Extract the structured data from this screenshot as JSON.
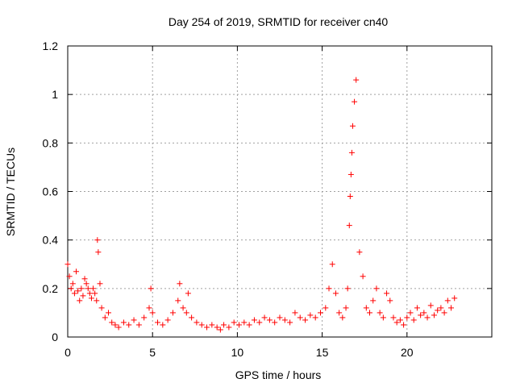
{
  "chart_data": {
    "type": "scatter",
    "title": "Day 254 of 2019, SRMTID for receiver cn40",
    "xlabel": "GPS time / hours",
    "ylabel": "SRMTID / TECUs",
    "xlim": [
      0,
      25
    ],
    "ylim": [
      0,
      1.2
    ],
    "xticks": [
      0,
      5,
      10,
      15,
      20
    ],
    "yticks": [
      0,
      0.2,
      0.4,
      0.6,
      0.8,
      1,
      1.2
    ],
    "xtick_labels": [
      "0",
      "5",
      "10",
      "15",
      "20"
    ],
    "ytick_labels": [
      "0",
      "0.2",
      "0.4",
      "0.6",
      "0.8",
      "1",
      "1.2"
    ],
    "grid": true,
    "marker": "+",
    "color": "#ff0000",
    "series": [
      {
        "name": "SRMTID",
        "x": [
          0.0,
          0.1,
          0.2,
          0.3,
          0.4,
          0.5,
          0.6,
          0.7,
          0.8,
          0.9,
          1.0,
          1.1,
          1.2,
          1.3,
          1.4,
          1.5,
          1.6,
          1.7,
          1.75,
          1.8,
          1.9,
          2.0,
          2.2,
          2.4,
          2.6,
          2.8,
          3.0,
          3.3,
          3.6,
          3.9,
          4.2,
          4.5,
          4.8,
          4.9,
          5.0,
          5.3,
          5.6,
          5.9,
          6.2,
          6.5,
          6.6,
          6.8,
          7.0,
          7.1,
          7.3,
          7.6,
          7.9,
          8.2,
          8.5,
          8.8,
          9.0,
          9.2,
          9.5,
          9.8,
          10.1,
          10.4,
          10.7,
          11.0,
          11.3,
          11.6,
          11.9,
          12.2,
          12.5,
          12.8,
          13.1,
          13.4,
          13.7,
          14.0,
          14.3,
          14.6,
          14.9,
          15.2,
          15.4,
          15.6,
          15.8,
          16.0,
          16.2,
          16.4,
          16.5,
          16.6,
          16.65,
          16.7,
          16.75,
          16.8,
          16.9,
          17.0,
          17.2,
          17.4,
          17.6,
          17.8,
          18.0,
          18.2,
          18.4,
          18.6,
          18.8,
          19.0,
          19.2,
          19.4,
          19.6,
          19.8,
          20.0,
          20.2,
          20.4,
          20.6,
          20.8,
          21.0,
          21.2,
          21.4,
          21.6,
          21.8,
          22.0,
          22.2,
          22.4,
          22.6,
          22.8
        ],
        "y": [
          0.3,
          0.25,
          0.2,
          0.22,
          0.18,
          0.27,
          0.19,
          0.15,
          0.2,
          0.17,
          0.24,
          0.22,
          0.2,
          0.18,
          0.16,
          0.2,
          0.18,
          0.15,
          0.4,
          0.35,
          0.22,
          0.12,
          0.08,
          0.1,
          0.06,
          0.05,
          0.04,
          0.06,
          0.05,
          0.07,
          0.05,
          0.08,
          0.12,
          0.2,
          0.1,
          0.06,
          0.05,
          0.07,
          0.1,
          0.15,
          0.22,
          0.12,
          0.1,
          0.18,
          0.08,
          0.06,
          0.05,
          0.04,
          0.05,
          0.04,
          0.03,
          0.05,
          0.04,
          0.06,
          0.05,
          0.06,
          0.05,
          0.07,
          0.06,
          0.08,
          0.07,
          0.06,
          0.08,
          0.07,
          0.06,
          0.1,
          0.08,
          0.07,
          0.09,
          0.08,
          0.1,
          0.12,
          0.2,
          0.3,
          0.18,
          0.1,
          0.08,
          0.12,
          0.2,
          0.46,
          0.58,
          0.67,
          0.76,
          0.87,
          0.97,
          1.06,
          0.35,
          0.25,
          0.12,
          0.1,
          0.15,
          0.2,
          0.1,
          0.08,
          0.18,
          0.15,
          0.08,
          0.06,
          0.07,
          0.05,
          0.08,
          0.1,
          0.07,
          0.12,
          0.09,
          0.1,
          0.08,
          0.13,
          0.09,
          0.11,
          0.12,
          0.1,
          0.15,
          0.12,
          0.16
        ]
      }
    ]
  }
}
